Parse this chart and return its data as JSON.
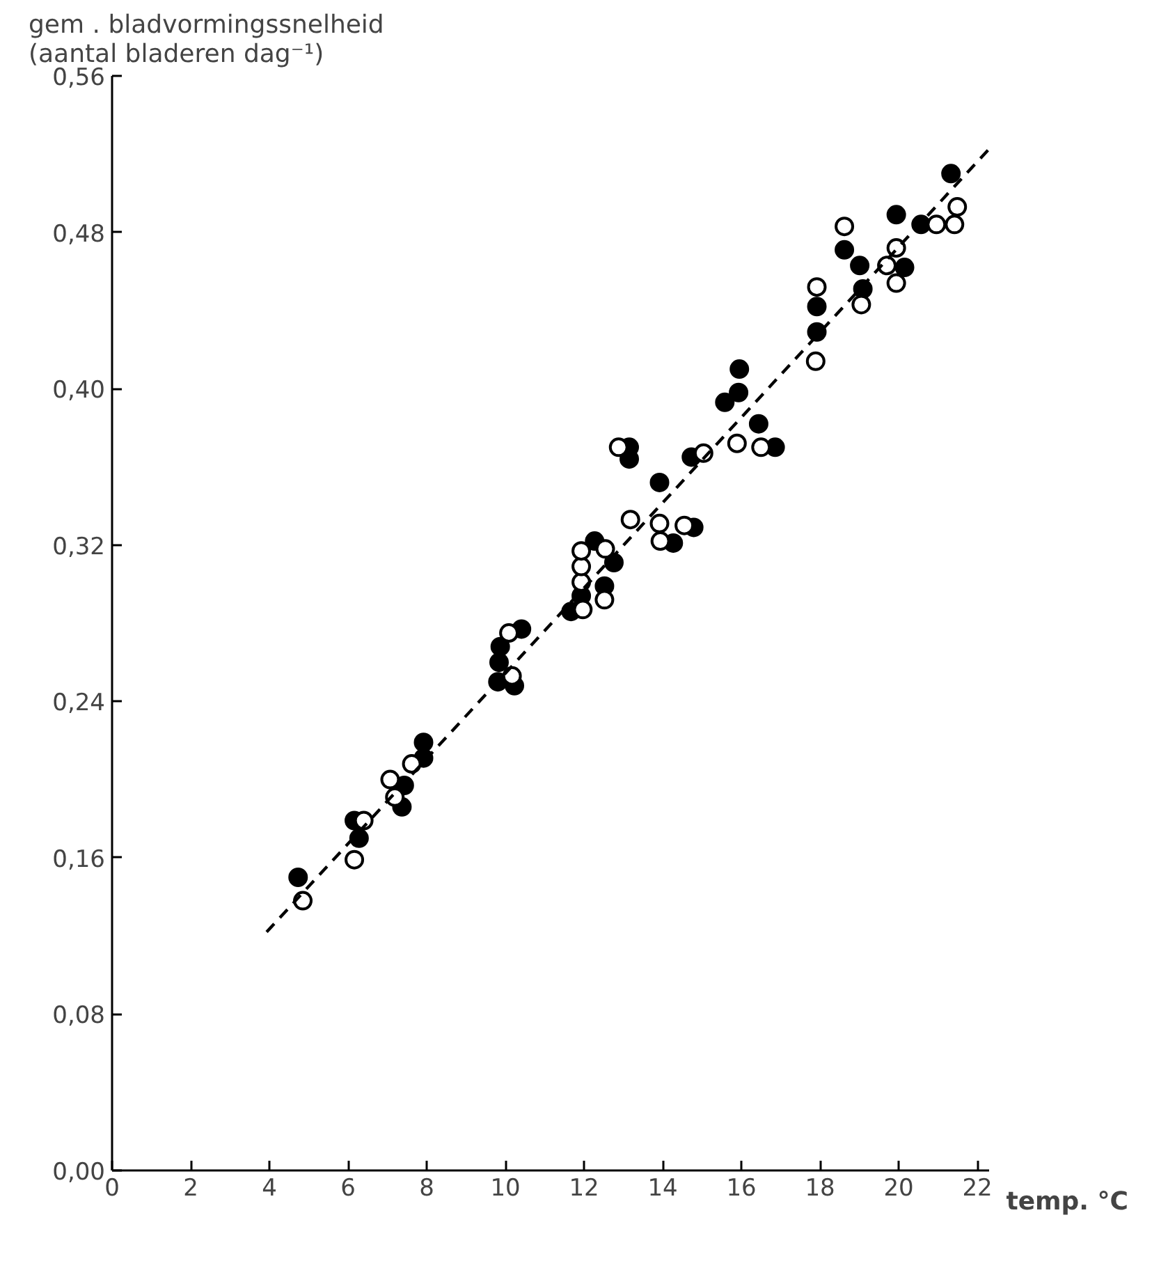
{
  "chart_data": {
    "type": "scatter",
    "ylabel": "gem . bladvormingssnelheid\n(aantal bladeren dag⁻¹)",
    "xlabel": "temp. °C",
    "xlim": [
      0,
      22.3
    ],
    "ylim": [
      0,
      0.56
    ],
    "xticks": [
      0,
      2,
      4,
      6,
      8,
      10,
      12,
      14,
      16,
      18,
      20,
      22
    ],
    "yticks": [
      {
        "value": 0,
        "label": "0,00"
      },
      {
        "value": 0.08,
        "label": "0,08"
      },
      {
        "value": 0.16,
        "label": "0,16"
      },
      {
        "value": 0.24,
        "label": "0,24"
      },
      {
        "value": 0.32,
        "label": "0,32"
      },
      {
        "value": 0.4,
        "label": "0,40"
      },
      {
        "value": 0.48,
        "label": "0,48"
      },
      {
        "value": 0.56,
        "label": "0,56"
      }
    ],
    "grid": false,
    "series": [
      {
        "marker": "circle",
        "color": "#000000",
        "x": [
          4.73,
          6.28,
          6.16,
          7.37,
          7.43,
          7.92,
          7.92,
          9.81,
          10.23,
          9.84,
          9.87,
          10.41,
          11.67,
          11.93,
          12.27,
          12.76,
          12.52,
          13.15,
          13.15,
          13.92,
          14.27,
          14.79,
          14.73,
          16.44,
          16.86,
          15.58,
          15.93,
          15.95,
          17.92,
          17.92,
          18.62,
          19.01,
          19.09,
          19.94,
          20.15,
          20.57,
          21.33
        ],
        "values": [
          0.15,
          0.17,
          0.179,
          0.186,
          0.197,
          0.211,
          0.219,
          0.25,
          0.248,
          0.26,
          0.268,
          0.277,
          0.286,
          0.294,
          0.322,
          0.311,
          0.299,
          0.364,
          0.37,
          0.352,
          0.321,
          0.329,
          0.365,
          0.382,
          0.37,
          0.393,
          0.398,
          0.41,
          0.429,
          0.442,
          0.471,
          0.463,
          0.451,
          0.489,
          0.462,
          0.484,
          0.51
        ]
      },
      {
        "marker": "circle",
        "color": "#ffffff",
        "x": [
          4.85,
          6.16,
          6.4,
          7.19,
          7.07,
          7.62,
          10.17,
          10.09,
          11.97,
          11.93,
          11.93,
          11.93,
          12.54,
          12.52,
          13.18,
          12.88,
          13.92,
          13.94,
          14.55,
          15.04,
          15.89,
          16.5,
          17.89,
          17.92,
          18.62,
          19.05,
          19.94,
          19.7,
          19.94,
          20.96,
          21.42,
          21.49
        ],
        "values": [
          0.138,
          0.159,
          0.179,
          0.191,
          0.2,
          0.208,
          0.253,
          0.275,
          0.287,
          0.301,
          0.309,
          0.317,
          0.318,
          0.292,
          0.333,
          0.37,
          0.331,
          0.322,
          0.33,
          0.367,
          0.372,
          0.37,
          0.414,
          0.452,
          0.483,
          0.443,
          0.472,
          0.463,
          0.454,
          0.484,
          0.484,
          0.493
        ]
      },
      {
        "type": "line",
        "marker": "none",
        "line_style": "dashed",
        "color": "#000000",
        "x": [
          3.93,
          22.27
        ],
        "values": [
          0.122,
          0.522
        ]
      }
    ]
  }
}
